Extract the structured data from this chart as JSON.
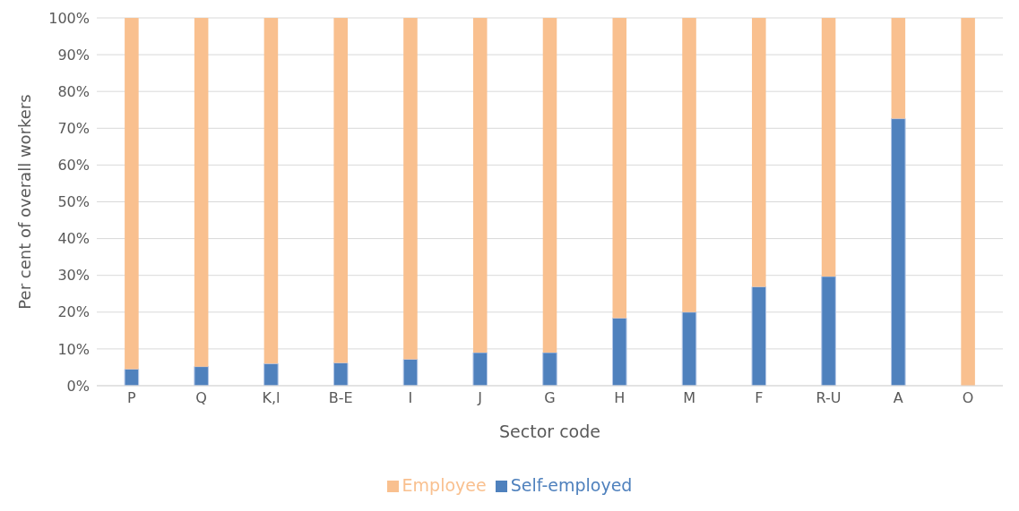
{
  "chart_data": {
    "type": "bar",
    "stacked": true,
    "xlabel": "Sector code",
    "ylabel": "Per cent of overall workers",
    "categories": [
      "P",
      "Q",
      "K,l",
      "B-E",
      "I",
      "J",
      "G",
      "H",
      "M",
      "F",
      "R-U",
      "A",
      "O"
    ],
    "series": [
      {
        "name": "Self-employed",
        "color": "#4f81bd",
        "values": [
          4.5,
          5.2,
          6.0,
          6.2,
          7.2,
          9.0,
          9.0,
          18.4,
          20.0,
          26.9,
          29.7,
          72.6,
          0
        ]
      },
      {
        "name": "Employee",
        "color": "#f9c08f",
        "values": [
          95.5,
          94.8,
          94.0,
          93.8,
          92.8,
          91.0,
          91.0,
          81.6,
          80.0,
          73.1,
          70.3,
          27.4,
          100
        ]
      }
    ],
    "ylim": [
      0,
      100
    ],
    "yticks": [
      {
        "value": 0,
        "label": "0%"
      },
      {
        "value": 10,
        "label": "10%"
      },
      {
        "value": 20,
        "label": "20%"
      },
      {
        "value": 30,
        "label": "30%"
      },
      {
        "value": 40,
        "label": "40%"
      },
      {
        "value": 50,
        "label": "50%"
      },
      {
        "value": 60,
        "label": "60%"
      },
      {
        "value": 70,
        "label": "70%"
      },
      {
        "value": 80,
        "label": "80%"
      },
      {
        "value": 90,
        "label": "90%"
      },
      {
        "value": 100,
        "label": "100%"
      }
    ],
    "grid": "y",
    "legend": "bottom"
  }
}
